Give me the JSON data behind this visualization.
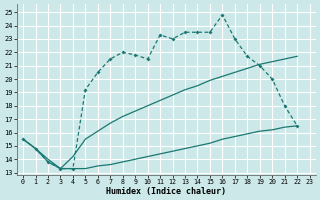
{
  "xlabel": "Humidex (Indice chaleur)",
  "bg_color": "#cce8e8",
  "grid_color": "#ffffff",
  "line_color": "#1a7872",
  "xlim": [
    -0.5,
    23.5
  ],
  "ylim": [
    12.8,
    25.6
  ],
  "yticks": [
    13,
    14,
    15,
    16,
    17,
    18,
    19,
    20,
    21,
    22,
    23,
    24,
    25
  ],
  "xticks": [
    0,
    1,
    2,
    3,
    4,
    5,
    6,
    7,
    8,
    9,
    10,
    11,
    12,
    13,
    14,
    15,
    16,
    17,
    18,
    19,
    20,
    21,
    22,
    23
  ],
  "curve1_x": [
    0,
    1,
    2,
    3,
    4,
    5,
    6,
    7,
    8,
    9,
    10,
    11,
    12,
    13,
    14,
    15,
    16,
    17,
    18,
    19,
    20,
    21,
    22
  ],
  "curve1_y": [
    15.5,
    14.8,
    13.8,
    13.3,
    13.3,
    19.2,
    20.5,
    21.5,
    22.0,
    21.8,
    21.5,
    23.3,
    23.0,
    23.5,
    23.5,
    23.5,
    24.8,
    23.0,
    21.7,
    21.0,
    20.0,
    18.0,
    16.5
  ],
  "curve2_x": [
    0,
    1,
    2,
    3,
    4,
    5,
    6,
    7,
    8,
    9,
    10,
    11,
    12,
    13,
    14,
    15,
    16,
    17,
    18,
    19,
    20,
    21,
    22
  ],
  "curve2_y": [
    15.5,
    14.8,
    14.0,
    13.3,
    14.2,
    15.5,
    16.1,
    16.7,
    17.2,
    17.6,
    18.0,
    18.4,
    18.8,
    19.2,
    19.5,
    19.9,
    20.2,
    20.5,
    20.8,
    21.1,
    21.3,
    21.5,
    21.7
  ],
  "curve3_x": [
    0,
    1,
    2,
    3,
    4,
    5,
    6,
    7,
    8,
    9,
    10,
    11,
    12,
    13,
    14,
    15,
    16,
    17,
    18,
    19,
    20,
    21,
    22
  ],
  "curve3_y": [
    15.5,
    14.8,
    13.8,
    13.3,
    13.3,
    13.3,
    13.5,
    13.6,
    13.8,
    14.0,
    14.2,
    14.4,
    14.6,
    14.8,
    15.0,
    15.2,
    15.5,
    15.7,
    15.9,
    16.1,
    16.2,
    16.4,
    16.5
  ]
}
